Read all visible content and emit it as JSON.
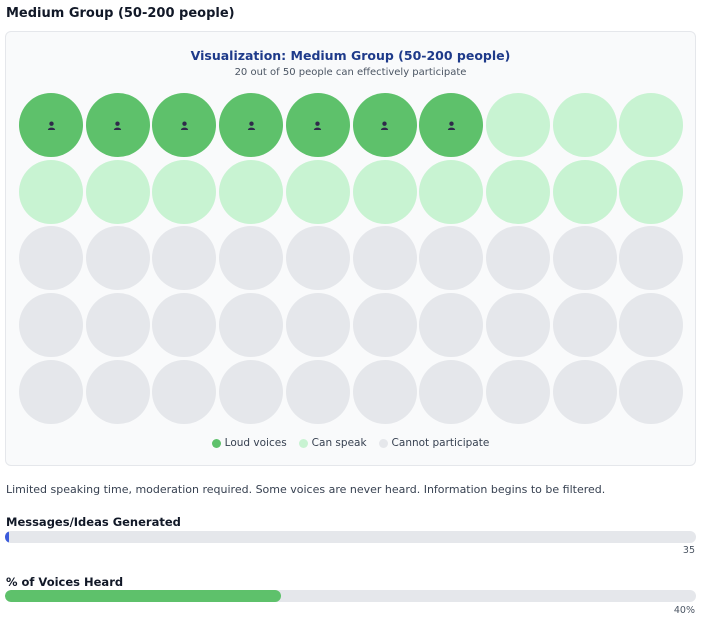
{
  "title": "Medium Group (50-200 people)",
  "visualization": {
    "title": "Visualization: Medium Group (50-200 people)",
    "subtitle": "20 out of 50 people can effectively participate",
    "loud_count": 7,
    "can_speak_count": 13,
    "cannot_count": 30,
    "columns": 10,
    "icon": "person-icon"
  },
  "legend": [
    {
      "label": "Loud voices",
      "color": "#5ec16b"
    },
    {
      "label": "Can speak",
      "color": "#c8f3d2"
    },
    {
      "label": "Cannot participate",
      "color": "#e5e7eb"
    }
  ],
  "description": "Limited speaking time, moderation required. Some voices are never heard. Information begins to be filtered.",
  "metrics": [
    {
      "label": "Messages/Ideas Generated",
      "value_text": "35",
      "fill_fraction": 0.006,
      "color": "#3b5bdb"
    },
    {
      "label": "% of Voices Heard",
      "value_text": "40%",
      "fill_fraction": 0.4,
      "color": "#5ec16b"
    }
  ]
}
